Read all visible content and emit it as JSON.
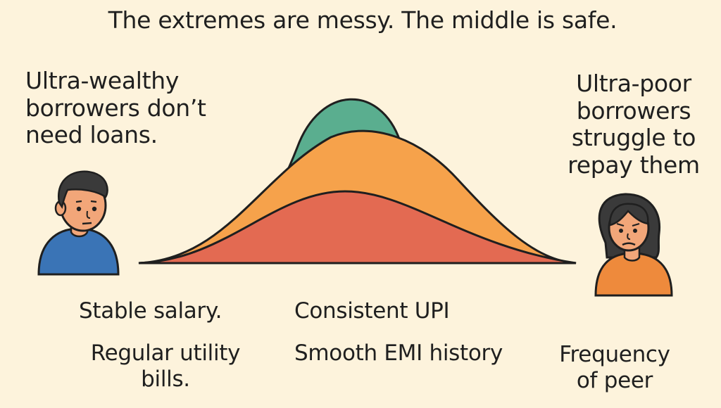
{
  "title": "The extremes are messy. The middle is safe.",
  "left_caption": "Ultra-wealthy borrowers don’t need loans.",
  "right_caption": "Ultra-poor borrowers struggle to repay them",
  "labels": {
    "stable_salary": "Stable salary.",
    "regular_utility_bills": "Regular utility bills.",
    "consistent_upi": "Consistent UPI",
    "smooth_emi_history": "Smooth EMI history",
    "frequency_of_peer": "Frequency of peer"
  },
  "colors": {
    "background": "#fdf3dc",
    "green_curve": "#5aae8f",
    "orange_curve": "#f6a24b",
    "red_curve": "#e36a52",
    "outline": "#1f1f1f",
    "man_shirt": "#3a74b6",
    "woman_shirt": "#ee8a3c",
    "skin": "#f2a679",
    "hair": "#3a3a3a"
  },
  "icons": {
    "left_person": "man-avatar-icon",
    "right_person": "woman-avatar-icon"
  }
}
